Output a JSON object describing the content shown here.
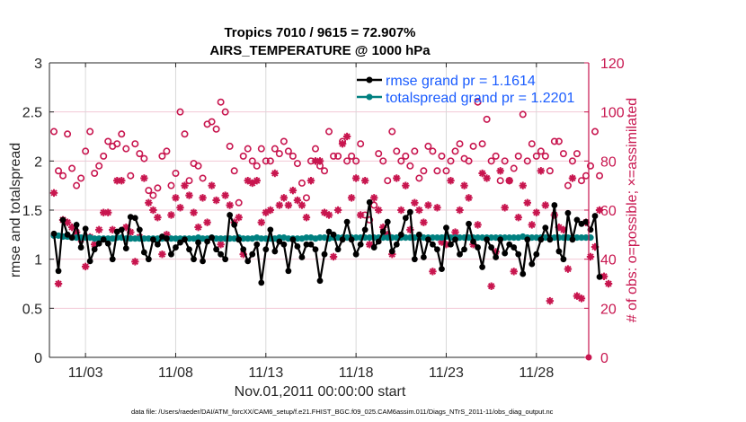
{
  "chart_data": {
    "type": "line",
    "title_line1": "Tropics 7010 / 9615 = 72.907%",
    "title_line2": "AIRS_TEMPERATURE @ 1000 hPa",
    "xlabel": "Nov.01,2011 00:00:00 start",
    "ylabel": "rmse and totalspread",
    "y2label": "# of obs: o=possible; ×=assimilated",
    "footnote": "data file: /Users/raeder/DAI/ATM_forcXX/CAM6_setup/f.e21.FHIST_BGC.f09_025.CAM6assim.011/Diags_NTrS_2011-11/obs_diag_output.nc",
    "xlim_days": [
      0,
      29.9
    ],
    "x_ticks": [
      {
        "day": 2,
        "label": "11/03"
      },
      {
        "day": 7,
        "label": "11/08"
      },
      {
        "day": 12,
        "label": "11/13"
      },
      {
        "day": 17,
        "label": "11/18"
      },
      {
        "day": 22,
        "label": "11/23"
      },
      {
        "day": 27,
        "label": "11/28"
      }
    ],
    "ylim": [
      0,
      3
    ],
    "y_ticks": [
      "0",
      "0.5",
      "1",
      "1.5",
      "2",
      "2.5",
      "3"
    ],
    "y2lim": [
      0,
      120
    ],
    "y2_ticks": [
      "0",
      "20",
      "40",
      "60",
      "80",
      "100",
      "120"
    ],
    "grid": true,
    "legend_position": "top-right",
    "legend": [
      {
        "label": "rmse grand pr = 1.1614",
        "color": "#000000"
      },
      {
        "label": "totalspread grand pr = 1.2201",
        "color": "#008080"
      }
    ],
    "colors": {
      "rmse": "#000000",
      "totalspread": "#008080",
      "obs": "#c8164f",
      "legend_text": "#1a5cff",
      "grid_x": "#d9d9d9",
      "grid_y": "#f2c8d6"
    },
    "time_step_days": 0.25,
    "series": [
      {
        "name": "rmse",
        "axis": "left",
        "values": [
          1.26,
          0.88,
          1.4,
          1.25,
          1.22,
          1.35,
          1.12,
          1.31,
          0.98,
          1.1,
          1.16,
          1.2,
          1.16,
          1.0,
          1.28,
          1.3,
          1.11,
          1.43,
          1.42,
          1.3,
          1.07,
          1.0,
          1.2,
          1.15,
          1.23,
          1.21,
          1.05,
          1.12,
          1.17,
          1.2,
          1.1,
          1.0,
          1.17,
          0.98,
          1.18,
          1.22,
          1.1,
          1.05,
          1.0,
          1.45,
          1.35,
          1.2,
          1.1,
          0.98,
          1.05,
          1.15,
          0.76,
          1.1,
          1.3,
          1.08,
          1.18,
          1.15,
          0.88,
          1.2,
          1.13,
          1.02,
          1.15,
          1.15,
          1.1,
          0.78,
          1.05,
          1.28,
          1.25,
          1.1,
          1.2,
          1.38,
          1.2,
          1.05,
          1.15,
          1.3,
          1.58,
          1.12,
          1.18,
          1.28,
          1.38,
          1.08,
          1.15,
          1.25,
          1.42,
          1.48,
          1.0,
          1.25,
          1.02,
          1.2,
          1.15,
          1.1,
          0.9,
          1.32,
          1.15,
          1.2,
          1.05,
          1.1,
          1.36,
          1.18,
          1.12,
          0.92,
          1.2,
          1.12,
          1.02,
          1.2,
          1.06,
          1.15,
          1.12,
          1.05,
          0.85,
          1.2,
          0.95,
          1.05,
          1.2,
          1.32,
          1.2,
          1.55,
          1.08,
          1.0,
          1.47,
          1.2,
          1.4,
          1.36,
          1.38,
          1.3,
          1.44,
          0.82
        ]
      },
      {
        "name": "totalspread",
        "axis": "left",
        "values": [
          1.24,
          1.24,
          1.23,
          1.23,
          1.22,
          1.22,
          1.22,
          1.22,
          1.22,
          1.21,
          1.21,
          1.21,
          1.21,
          1.21,
          1.22,
          1.22,
          1.21,
          1.21,
          1.21,
          1.21,
          1.21,
          1.21,
          1.21,
          1.21,
          1.21,
          1.21,
          1.21,
          1.21,
          1.21,
          1.21,
          1.21,
          1.21,
          1.22,
          1.21,
          1.21,
          1.22,
          1.21,
          1.21,
          1.21,
          1.21,
          1.21,
          1.22,
          1.21,
          1.21,
          1.21,
          1.22,
          1.21,
          1.21,
          1.21,
          1.21,
          1.22,
          1.22,
          1.21,
          1.21,
          1.21,
          1.21,
          1.22,
          1.22,
          1.21,
          1.22,
          1.22,
          1.21,
          1.22,
          1.22,
          1.22,
          1.22,
          1.22,
          1.22,
          1.22,
          1.22,
          1.22,
          1.22,
          1.22,
          1.22,
          1.22,
          1.22,
          1.22,
          1.22,
          1.22,
          1.22,
          1.22,
          1.22,
          1.22,
          1.22,
          1.22,
          1.22,
          1.22,
          1.23,
          1.22,
          1.22,
          1.22,
          1.22,
          1.22,
          1.22,
          1.22,
          1.22,
          1.22,
          1.22,
          1.22,
          1.22,
          1.22,
          1.22,
          1.22,
          1.22,
          1.23,
          1.22,
          1.22,
          1.22,
          1.22,
          1.22,
          1.22,
          1.22,
          1.22,
          1.22,
          1.22,
          1.22,
          1.22,
          1.22,
          1.22,
          1.22
        ]
      },
      {
        "name": "obs_possible",
        "axis": "right",
        "marker": "o",
        "values": [
          92,
          76,
          74,
          91,
          77,
          70,
          73,
          84,
          92,
          75,
          78,
          82,
          88,
          86,
          87,
          91,
          85,
          74,
          87,
          83,
          81,
          68,
          66,
          69,
          82,
          84,
          70,
          75,
          100,
          91,
          72,
          79,
          78,
          73,
          95,
          96,
          93,
          104,
          100,
          86,
          76,
          63,
          82,
          85,
          80,
          78,
          85,
          80,
          80,
          85,
          83,
          88,
          84,
          82,
          79,
          71,
          65,
          80,
          85,
          78,
          76,
          92,
          82,
          82,
          88,
          80,
          82,
          80,
          87,
          58,
          56,
          62,
          83,
          80,
          72,
          92,
          84,
          80,
          82,
          78,
          84,
          73,
          76,
          86,
          84,
          76,
          82,
          76,
          80,
          84,
          87,
          81,
          80,
          86,
          104,
          87,
          97,
          80,
          82,
          72,
          80,
          72,
          77,
          82,
          99,
          80,
          87,
          82,
          84,
          82,
          76,
          88,
          88,
          83,
          70,
          80,
          83,
          72,
          74,
          78,
          92,
          74
        ]
      },
      {
        "name": "obs_assimilated",
        "axis": "right",
        "marker": "*",
        "values": [
          67,
          30,
          56,
          55,
          53,
          51,
          48,
          37,
          49,
          46,
          52,
          59,
          59,
          52,
          72,
          72,
          53,
          51,
          39,
          49,
          73,
          63,
          60,
          57,
          42,
          50,
          58,
          65,
          61,
          70,
          66,
          59,
          53,
          65,
          55,
          70,
          64,
          46,
          66,
          62,
          55,
          57,
          42,
          72,
          71,
          72,
          55,
          59,
          60,
          75,
          62,
          65,
          62,
          68,
          64,
          62,
          57,
          72,
          80,
          80,
          59,
          58,
          41,
          60,
          87,
          90,
          65,
          73,
          58,
          72,
          46,
          65,
          60,
          53,
          50,
          42,
          73,
          60,
          70,
          52,
          63,
          60,
          55,
          62,
          35,
          61,
          47,
          46,
          72,
          51,
          60,
          70,
          65,
          46,
          54,
          75,
          73,
          29,
          43,
          76,
          61,
          72,
          35,
          57,
          70,
          63,
          54,
          59,
          76,
          62,
          23,
          58,
          53,
          52,
          36,
          73,
          25,
          24,
          55,
          41,
          45,
          60,
          33,
          30
        ]
      }
    ]
  }
}
